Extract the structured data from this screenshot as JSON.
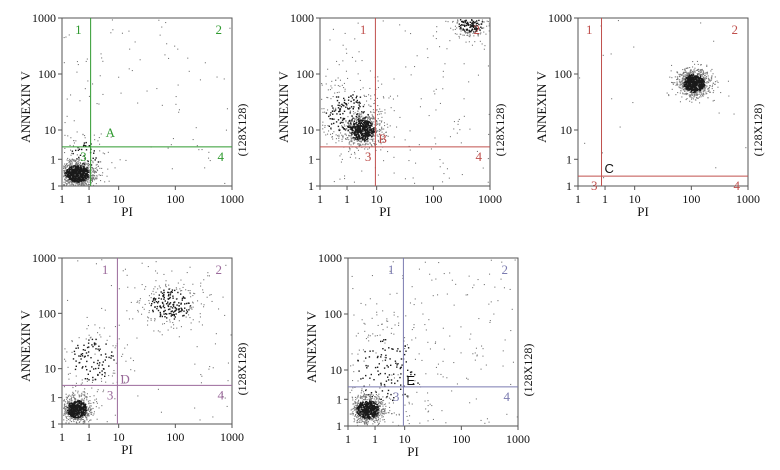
{
  "chart_data": [
    {
      "type": "scatter",
      "panel": "A",
      "xlabel": "PI",
      "ylabel": "ANNEXIN V",
      "resolution": "(128X128)",
      "x_ticks": [
        "1",
        "1",
        "10",
        "100",
        "1000"
      ],
      "y_ticks": [
        "1000",
        "100",
        "10",
        "1",
        "1"
      ],
      "xlim": [
        1,
        1000
      ],
      "ylim": [
        1,
        1000
      ],
      "log_scale": true,
      "gate": {
        "x": 3.2,
        "y": 5.0
      },
      "quadrants": [
        "1",
        "2",
        "3",
        "4"
      ],
      "color": "#2f9a2f",
      "clusters": [
        {
          "x": 1.8,
          "y": 1.7,
          "sx": 0.17,
          "sy": 0.12,
          "n": 950
        },
        {
          "x": 2.5,
          "y": 3.5,
          "sx": 0.2,
          "sy": 0.22,
          "n": 80
        }
      ],
      "background_points": 90
    },
    {
      "type": "scatter",
      "panel": "B",
      "xlabel": "PI",
      "ylabel": "ANNEXIN V",
      "resolution": "(128X128)",
      "x_ticks": [
        "1",
        "1",
        "10",
        "100",
        "1000"
      ],
      "y_ticks": [
        "1000",
        "100",
        "10",
        "1",
        "1"
      ],
      "xlim": [
        1,
        1000
      ],
      "ylim": [
        1,
        1000
      ],
      "log_scale": true,
      "gate": {
        "x": 9.5,
        "y": 5.0
      },
      "quadrants": [
        "1",
        "2",
        "3",
        "4"
      ],
      "color": "#c0504d",
      "clusters": [
        {
          "x": 5.5,
          "y": 10,
          "sx": 0.17,
          "sy": 0.15,
          "n": 650
        },
        {
          "x": 3.0,
          "y": 20,
          "sx": 0.32,
          "sy": 0.3,
          "n": 300
        },
        {
          "x": 450,
          "y": 800,
          "sx": 0.18,
          "sy": 0.12,
          "n": 220
        }
      ],
      "background_points": 130
    },
    {
      "type": "scatter",
      "panel": "C",
      "xlabel": "PI",
      "ylabel": "ANNEXIN V",
      "resolution": "(128X128)",
      "x_ticks": [
        "1",
        "1",
        "10",
        "100",
        "1000"
      ],
      "y_ticks": [
        "1000",
        "100",
        "10",
        "1",
        "1"
      ],
      "xlim": [
        1,
        1000
      ],
      "ylim": [
        1,
        1000
      ],
      "log_scale": true,
      "gate": {
        "x": 2.6,
        "y": 1.5
      },
      "quadrants": [
        "1",
        "2",
        "3",
        "4"
      ],
      "color": "#c0504d",
      "clusters": [
        {
          "x": 110,
          "y": 70,
          "sx": 0.15,
          "sy": 0.13,
          "n": 850
        }
      ],
      "background_points": 20
    },
    {
      "type": "scatter",
      "panel": "D",
      "xlabel": "PI",
      "ylabel": "ANNEXIN V",
      "resolution": "(128X128)",
      "x_ticks": [
        "1",
        "1",
        "10",
        "100",
        "1000"
      ],
      "y_ticks": [
        "1000",
        "100",
        "10",
        "1",
        "1"
      ],
      "xlim": [
        1,
        1000
      ],
      "ylim": [
        1,
        1000
      ],
      "log_scale": true,
      "gate": {
        "x": 9.5,
        "y": 5.0
      },
      "quadrants": [
        "1",
        "2",
        "3",
        "4"
      ],
      "color": "#9b6a9b",
      "clusters": [
        {
          "x": 1.8,
          "y": 1.9,
          "sx": 0.14,
          "sy": 0.13,
          "n": 650
        },
        {
          "x": 80,
          "y": 150,
          "sx": 0.28,
          "sy": 0.22,
          "n": 260
        },
        {
          "x": 3.5,
          "y": 15,
          "sx": 0.3,
          "sy": 0.3,
          "n": 160
        }
      ],
      "background_points": 80
    },
    {
      "type": "scatter",
      "panel": "E",
      "xlabel": "PI",
      "ylabel": "ANNEXIN V",
      "resolution": "(128X128)",
      "x_ticks": [
        "1",
        "1",
        "10",
        "100",
        "1000"
      ],
      "y_ticks": [
        "1000",
        "100",
        "10",
        "1",
        "1"
      ],
      "xlim": [
        1,
        1000
      ],
      "ylim": [
        1,
        1000
      ],
      "log_scale": true,
      "gate": {
        "x": 9.5,
        "y": 5.0
      },
      "quadrants": [
        "1",
        "2",
        "3",
        "4"
      ],
      "color": "#7b7bb0",
      "clusters": [
        {
          "x": 2.2,
          "y": 2.0,
          "sx": 0.16,
          "sy": 0.13,
          "n": 750
        },
        {
          "x": 5,
          "y": 10,
          "sx": 0.45,
          "sy": 0.45,
          "n": 200
        }
      ],
      "background_points": 160
    }
  ]
}
